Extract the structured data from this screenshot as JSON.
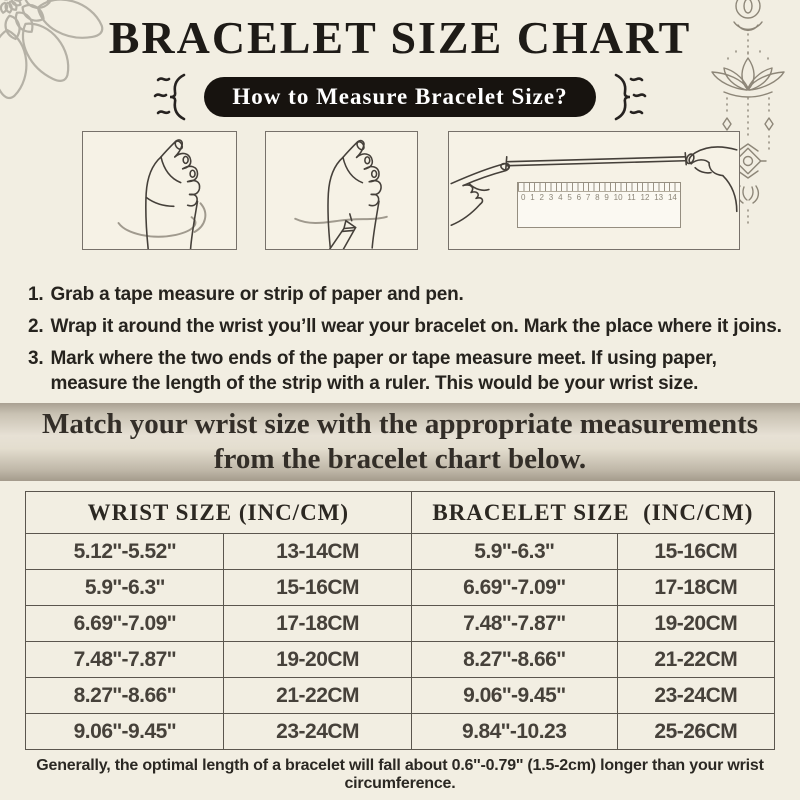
{
  "header": {
    "title": "BRACELET SIZE CHART",
    "pill_label": "How to Measure Bracelet Size?"
  },
  "illustrations": [
    {
      "name": "wrap-tape-around-wrist"
    },
    {
      "name": "mark-wrist-with-pen"
    },
    {
      "name": "measure-strip-with-ruler"
    }
  ],
  "ruler": {
    "numbers": [
      "0",
      "1",
      "2",
      "3",
      "4",
      "5",
      "6",
      "7",
      "8",
      "9",
      "10",
      "11",
      "12",
      "13",
      "14"
    ]
  },
  "steps": [
    {
      "num": "1.",
      "text": "Grab a tape measure or strip of paper and pen."
    },
    {
      "num": "2.",
      "text": "Wrap it around the wrist you’ll wear your bracelet on. Mark the place where it joins."
    },
    {
      "num": "3.",
      "text": "Mark where the two ends of the paper or tape measure meet. If using paper, measure the length of the strip with a ruler. This would be your wrist size."
    }
  ],
  "banner": {
    "line1": "Match your wrist size with the appropriate measurements",
    "line2": "from the bracelet chart below."
  },
  "size_table": {
    "headers": [
      "WRIST SIZE (INC/CM)",
      "BRACELET SIZE  (INC/CM)"
    ],
    "rows": [
      [
        "5.12''-5.52''",
        "13-14CM",
        "5.9''-6.3''",
        "15-16CM"
      ],
      [
        "5.9''-6.3''",
        "15-16CM",
        "6.69''-7.09''",
        "17-18CM"
      ],
      [
        "6.69''-7.09''",
        "17-18CM",
        "7.48''-7.87''",
        "19-20CM"
      ],
      [
        "7.48''-7.87''",
        "19-20CM",
        "8.27''-8.66''",
        "21-22CM"
      ],
      [
        "8.27''-8.66''",
        "21-22CM",
        "9.06''-9.45''",
        "23-24CM"
      ],
      [
        "9.06''-9.45''",
        "23-24CM",
        "9.84''-10.23",
        "25-26CM"
      ]
    ]
  },
  "footer": {
    "note": "Generally, the optimal length of a bracelet will fall about 0.6''-0.79'' (1.5-2cm) longer than your wrist circumference."
  },
  "icons": {
    "top_left": "mandala-flower-ornament",
    "top_right": "hanging-lotus-ornament",
    "pill_sides": "curly-bracket-squiggle"
  },
  "colors": {
    "background": "#f2eee2",
    "ink": "#221f1b",
    "pill_bg": "#17130f",
    "pill_text": "#ffffff",
    "banner_dark": "#a49b8c",
    "banner_light": "#e7e1d5",
    "table_border": "#5b564e",
    "ornament_gray": "#b5b1a6",
    "ornament_brown": "#8d8678"
  }
}
